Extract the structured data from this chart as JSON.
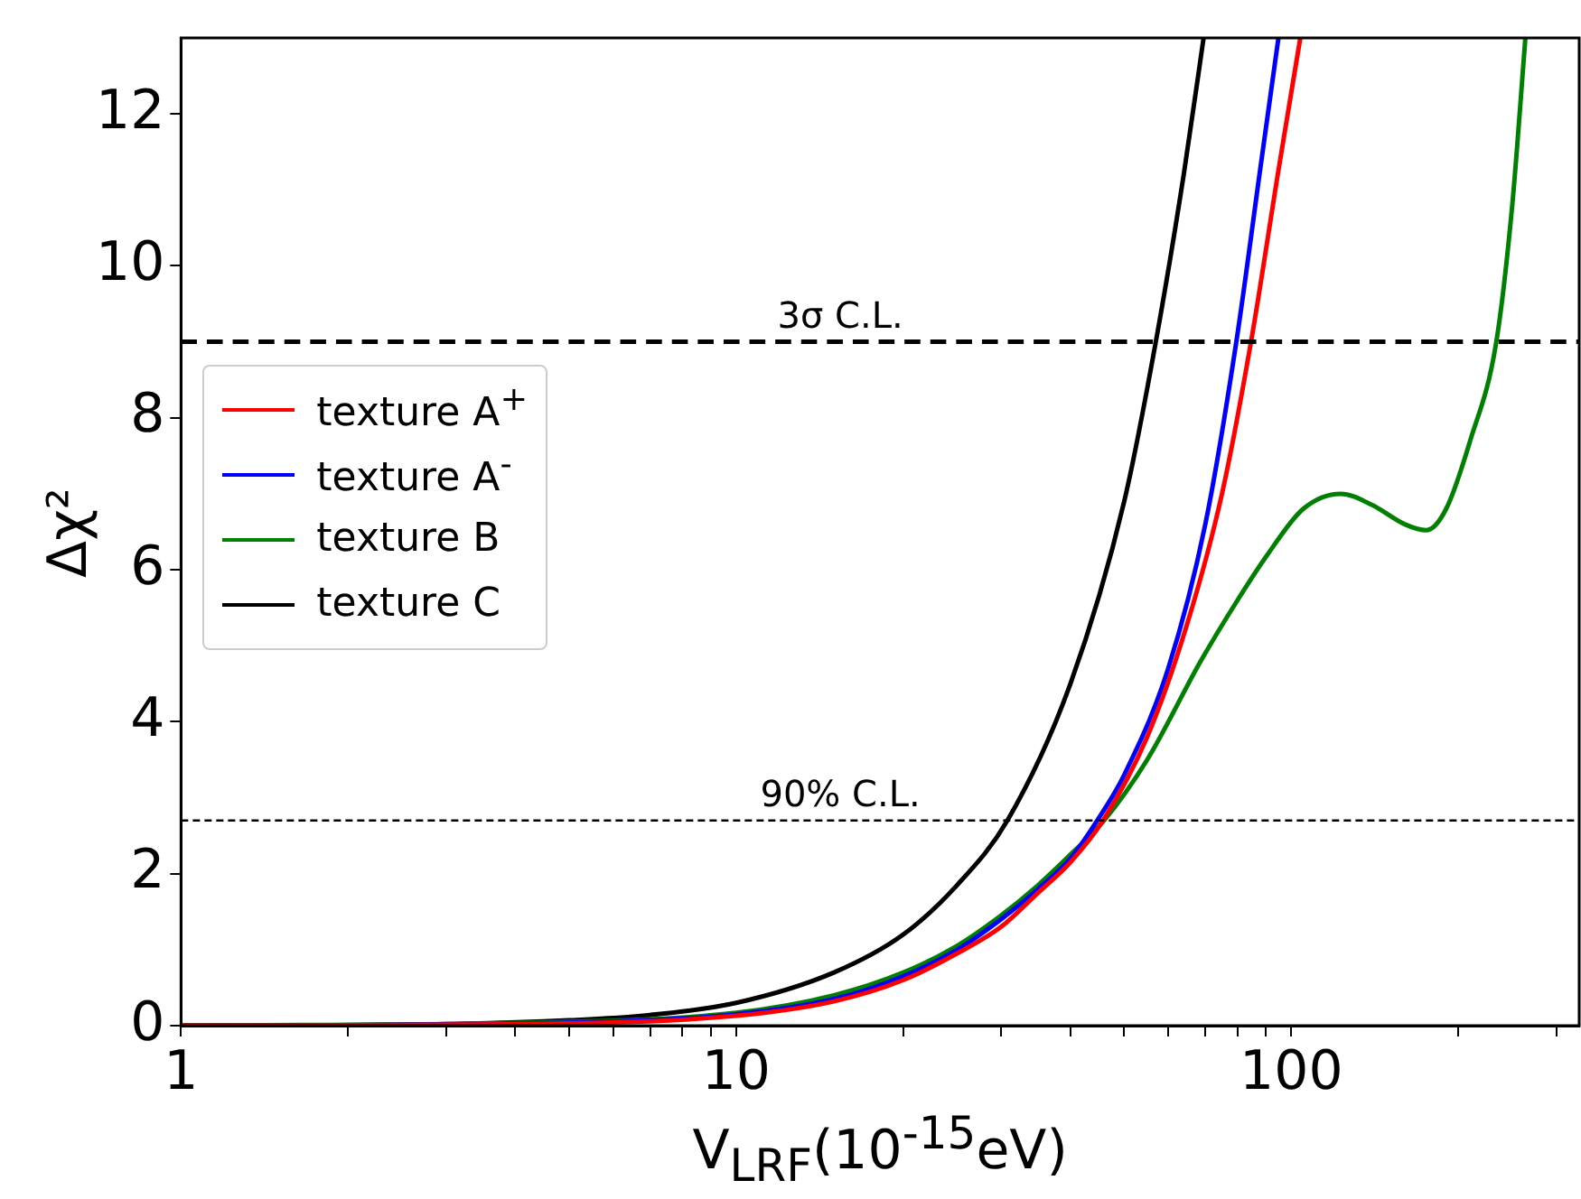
{
  "chart_data": {
    "type": "line",
    "xlabel": "V$_{LRF}$(10$^{-15}$eV)",
    "ylabel": "Δχ²",
    "log": "x",
    "xlim": [
      1,
      330
    ],
    "xticks": [
      1,
      {
        "value": 2,
        "label": null
      },
      {
        "value": 3,
        "label": null
      },
      {
        "value": 4,
        "label": null
      },
      {
        "value": 5,
        "label": null
      },
      {
        "value": 6,
        "label": null
      },
      {
        "value": 7,
        "label": null
      },
      {
        "value": 8,
        "label": null
      },
      {
        "value": 9,
        "label": null
      },
      10,
      {
        "value": 20,
        "label": null
      },
      {
        "value": 30,
        "label": null
      },
      {
        "value": 40,
        "label": null
      },
      {
        "value": 50,
        "label": null
      },
      {
        "value": 60,
        "label": null
      },
      {
        "value": 70,
        "label": null
      },
      {
        "value": 80,
        "label": null
      },
      {
        "value": 90,
        "label": null
      },
      100,
      {
        "value": 200,
        "label": null
      },
      {
        "value": 300,
        "label": null
      }
    ],
    "ylim": [
      0,
      13
    ],
    "yticks": [
      0,
      2,
      4,
      6,
      8,
      10,
      12
    ],
    "grid": false,
    "legend": "left",
    "marker": "none",
    "line_style": "solid",
    "ref_lines": [
      {
        "axis": "y",
        "value": 9,
        "label": "3σ C.L.",
        "line_style": "dashed",
        "color": "#000000"
      },
      {
        "axis": "y",
        "value": 2.7,
        "label": "90% C.L.",
        "line_style": "dashed",
        "color": "#000000"
      }
    ],
    "series": [
      {
        "name": "texture A$^{+}$",
        "color": "#ff0000",
        "x": [
          1,
          5,
          10,
          15,
          20,
          25,
          30,
          35,
          40,
          45.8,
          55,
          65,
          75,
          84.6,
          95,
          103.8
        ],
        "values": [
          0,
          0.03,
          0.13,
          0.32,
          0.6,
          0.95,
          1.3,
          1.75,
          2.15,
          2.7,
          3.8,
          5.3,
          7,
          9,
          11.3,
          13
        ]
      },
      {
        "name": "texture A$^{-}$",
        "color": "#0000ff",
        "x": [
          1,
          5,
          10,
          15,
          20,
          25,
          30,
          35,
          40,
          44.7,
          50,
          60,
          70,
          79.6,
          88,
          94.8
        ],
        "values": [
          0,
          0.04,
          0.15,
          0.35,
          0.65,
          1,
          1.4,
          1.8,
          2.2,
          2.7,
          3.3,
          4.7,
          6.6,
          9,
          11.3,
          13
        ]
      },
      {
        "name": "texture B",
        "color": "#008000",
        "x": [
          1,
          5,
          10,
          15,
          20,
          25,
          30,
          35,
          40,
          46,
          55,
          68.7,
          80,
          90.6,
          105,
          122.8,
          140,
          160,
          175,
          190,
          210,
          234,
          250,
          264
        ],
        "values": [
          0,
          0.05,
          0.17,
          0.4,
          0.7,
          1.05,
          1.45,
          1.85,
          2.25,
          2.7,
          3.5,
          4.8,
          5.6,
          6.2,
          6.8,
          7,
          6.85,
          6.6,
          6.52,
          6.8,
          7.7,
          9,
          10.8,
          13
        ]
      },
      {
        "name": "texture C",
        "color": "#000000",
        "x": [
          1,
          3,
          5,
          7,
          10,
          15,
          20,
          25,
          30.8,
          40,
          50,
          57,
          64,
          69.5
        ],
        "values": [
          0,
          0.02,
          0.07,
          0.14,
          0.3,
          0.7,
          1.2,
          1.85,
          2.7,
          4.5,
          6.9,
          9,
          11.2,
          13
        ]
      }
    ]
  }
}
